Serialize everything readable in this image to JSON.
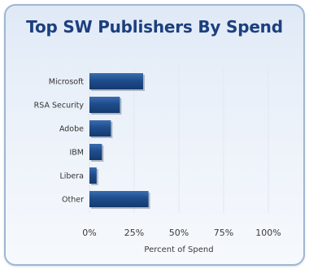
{
  "chart_data": {
    "type": "bar",
    "orientation": "horizontal",
    "title": "Top SW Publishers By Spend",
    "xlabel": "Percent of Spend",
    "ylabel": "",
    "categories": [
      "Microsoft",
      "RSA Security",
      "Adobe",
      "IBM",
      "Libera",
      "Other"
    ],
    "values": [
      30,
      17,
      12,
      7,
      4,
      33
    ],
    "xlim": [
      0,
      100
    ],
    "xticks": [
      "0%",
      "25%",
      "50%",
      "75%",
      "100%"
    ],
    "grid": true,
    "legend": "none",
    "bar_color": "#1e4d8c",
    "grid_color": "#e2e8f0"
  }
}
